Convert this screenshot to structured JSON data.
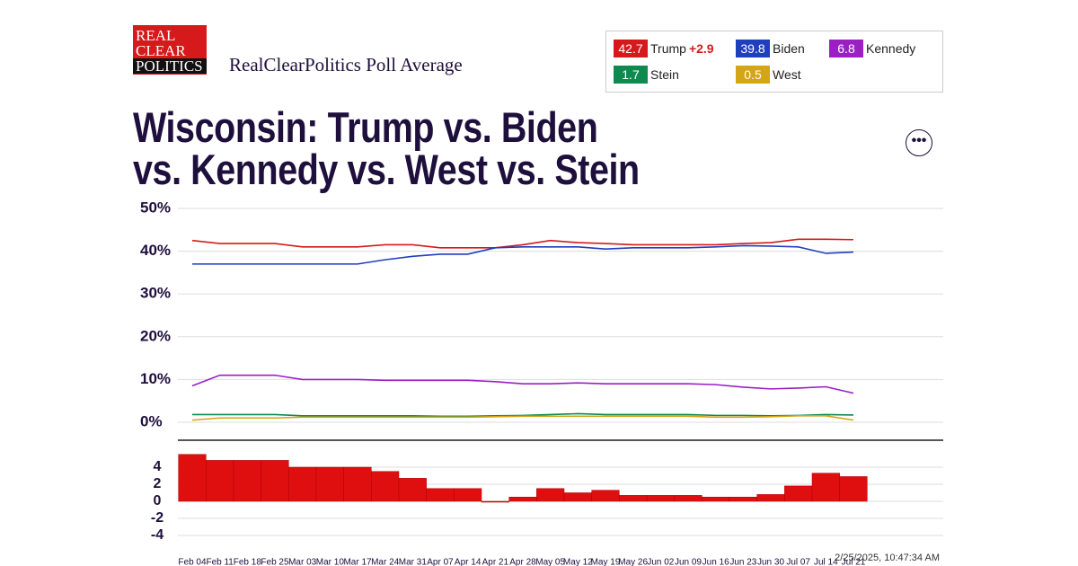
{
  "header": {
    "logo": [
      "REAL",
      "CLEAR",
      "POLITICS"
    ],
    "subtitle": "RealClearPolitics Poll Average"
  },
  "legend": [
    {
      "value": 42.7,
      "name": "Trump",
      "color": "#d6191b",
      "spread": "+2.9"
    },
    {
      "value": 39.8,
      "name": "Biden",
      "color": "#1f3fbf"
    },
    {
      "value": 6.8,
      "name": "Kennedy",
      "color": "#9b1fc4"
    },
    {
      "value": 1.7,
      "name": "Stein",
      "color": "#0f8a4e"
    },
    {
      "value": 0.5,
      "name": "West",
      "color": "#d4a514"
    }
  ],
  "chart_data": [
    {
      "type": "line",
      "title": "Wisconsin: Trump vs. Biden vs. Kennedy vs. West vs. Stein",
      "categories": [
        "Feb 04",
        "Feb 11",
        "Feb 18",
        "Feb 25",
        "Mar 03",
        "Mar 10",
        "Mar 17",
        "Mar 24",
        "Mar 31",
        "Apr 07",
        "Apr 14",
        "Apr 21",
        "Apr 28",
        "May 05",
        "May 12",
        "May 19",
        "May 26",
        "Jun 02",
        "Jun 09",
        "Jun 16",
        "Jun 23",
        "Jun 30",
        "Jul 07",
        "Jul 14",
        "Jul 21"
      ],
      "series": [
        {
          "name": "Trump",
          "color": "#d6191b",
          "values": [
            42.5,
            41.8,
            41.8,
            41.8,
            41,
            41,
            41,
            41.5,
            41.5,
            40.8,
            40.8,
            40.8,
            41.5,
            42.5,
            42,
            41.8,
            41.5,
            41.5,
            41.5,
            41.5,
            41.8,
            42,
            42.8,
            42.8,
            42.7
          ]
        },
        {
          "name": "Biden",
          "color": "#1f3fbf",
          "values": [
            37,
            37,
            37,
            37,
            37,
            37,
            37,
            38,
            38.8,
            39.3,
            39.3,
            40.8,
            41,
            41,
            41,
            40.5,
            40.8,
            40.8,
            40.8,
            41,
            41.3,
            41.2,
            41,
            39.5,
            39.8
          ]
        },
        {
          "name": "Kennedy",
          "color": "#9b1fc4",
          "values": [
            8.5,
            11,
            11,
            11,
            10,
            10,
            10,
            9.8,
            9.8,
            9.8,
            9.8,
            9.5,
            9,
            9,
            9.2,
            9,
            9,
            9,
            9,
            8.8,
            8.2,
            7.8,
            8,
            8.3,
            6.8
          ]
        },
        {
          "name": "Stein",
          "color": "#0f8a4e",
          "values": [
            1.8,
            1.8,
            1.8,
            1.8,
            1.5,
            1.5,
            1.5,
            1.5,
            1.5,
            1.4,
            1.4,
            1.5,
            1.6,
            1.8,
            2,
            1.8,
            1.8,
            1.8,
            1.8,
            1.6,
            1.6,
            1.5,
            1.6,
            1.8,
            1.7
          ]
        },
        {
          "name": "West",
          "color": "#d4a514",
          "values": [
            0.5,
            1,
            1,
            1,
            1.2,
            1.2,
            1.2,
            1.2,
            1.2,
            1.2,
            1.2,
            1.3,
            1.4,
            1.4,
            1.4,
            1.4,
            1.4,
            1.4,
            1.4,
            1.2,
            1.2,
            1.3,
            1.5,
            1.5,
            0.5
          ]
        }
      ],
      "ylim": [
        0,
        50
      ],
      "yticks": [
        {
          "value": 0,
          "label": "0%"
        },
        {
          "value": 10,
          "label": "10%"
        },
        {
          "value": 20,
          "label": "20%"
        },
        {
          "value": 30,
          "label": "30%"
        },
        {
          "value": 40,
          "label": "40%"
        },
        {
          "value": 50,
          "label": "50%"
        }
      ],
      "grid": true
    },
    {
      "type": "bar",
      "color": "#e00f0f",
      "values": [
        5.5,
        4.8,
        4.8,
        4.8,
        4,
        4,
        4,
        3.5,
        2.7,
        1.5,
        1.5,
        0,
        0.5,
        1.5,
        1,
        1.3,
        0.7,
        0.7,
        0.7,
        0.5,
        0.5,
        0.8,
        1.8,
        3.3,
        2.9
      ],
      "ylim": [
        -5,
        5
      ],
      "yticks": [
        -4,
        -2,
        0,
        2,
        4
      ],
      "grid": true
    }
  ],
  "timestamp": "2/25/2025, 10:47:34 AM"
}
